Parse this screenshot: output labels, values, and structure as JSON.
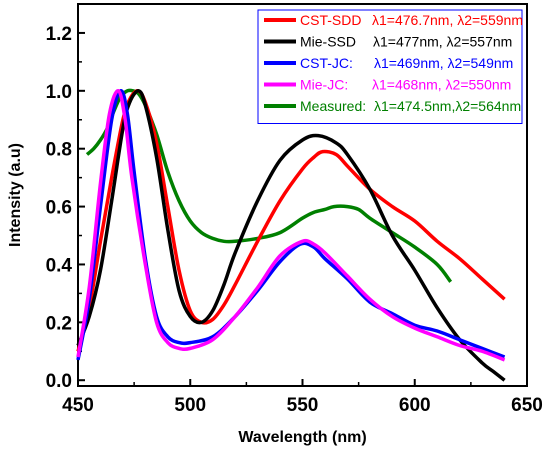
{
  "chart_data": {
    "type": "line",
    "xlabel": "Wavelength (nm)",
    "ylabel": "Intensity (a.u)",
    "xlim": [
      450,
      650
    ],
    "ylim": [
      -0.02,
      1.3
    ],
    "xticks": [
      450,
      500,
      550,
      600,
      650
    ],
    "yticks": [
      0.0,
      0.2,
      0.4,
      0.6,
      0.8,
      1.0,
      1.2
    ],
    "xtick_labels": [
      "450",
      "500",
      "550",
      "600",
      "650"
    ],
    "ytick_labels": [
      "0.0",
      "0.2",
      "0.4",
      "0.6",
      "0.8",
      "1.0",
      "1.2"
    ],
    "legend_position": "top-right",
    "grid": false,
    "series": [
      {
        "name": "CST-SDD",
        "legend_values": "λ1=476.7nm, λ2=559nm",
        "color": "#ff0000",
        "x": [
          450,
          455,
          460,
          465,
          470,
          473,
          476.7,
          480,
          485,
          490,
          495,
          500,
          505,
          510,
          515,
          520,
          530,
          540,
          550,
          555,
          559,
          565,
          570,
          580,
          590,
          600,
          610,
          620,
          630,
          640
        ],
        "y": [
          0.1,
          0.25,
          0.48,
          0.7,
          0.9,
          0.97,
          1.0,
          0.96,
          0.82,
          0.6,
          0.38,
          0.24,
          0.2,
          0.21,
          0.26,
          0.33,
          0.48,
          0.62,
          0.73,
          0.77,
          0.79,
          0.78,
          0.74,
          0.66,
          0.6,
          0.55,
          0.48,
          0.42,
          0.35,
          0.28
        ]
      },
      {
        "name": "Mie-SSD",
        "legend_values": "λ1=477nm, λ2=557nm",
        "color": "#000000",
        "x": [
          450,
          455,
          460,
          465,
          470,
          473,
          477,
          480,
          485,
          490,
          495,
          500,
          505,
          510,
          515,
          520,
          530,
          540,
          550,
          557,
          565,
          570,
          580,
          590,
          600,
          610,
          620,
          630,
          635,
          640
        ],
        "y": [
          0.12,
          0.22,
          0.38,
          0.62,
          0.87,
          0.96,
          1.0,
          0.95,
          0.77,
          0.52,
          0.31,
          0.22,
          0.2,
          0.24,
          0.33,
          0.44,
          0.62,
          0.76,
          0.83,
          0.845,
          0.82,
          0.78,
          0.66,
          0.5,
          0.38,
          0.25,
          0.14,
          0.06,
          0.03,
          0.0
        ]
      },
      {
        "name": "CST-JC:",
        "legend_values": "λ1=469nm, λ2=549nm",
        "color": "#0000ff",
        "x": [
          450,
          455,
          460,
          465,
          469,
          472,
          475,
          480,
          485,
          490,
          495,
          500,
          510,
          520,
          530,
          540,
          549,
          555,
          560,
          570,
          580,
          590,
          600,
          610,
          620,
          630,
          640
        ],
        "y": [
          0.07,
          0.28,
          0.6,
          0.9,
          1.0,
          0.92,
          0.72,
          0.42,
          0.22,
          0.15,
          0.13,
          0.13,
          0.15,
          0.22,
          0.31,
          0.41,
          0.47,
          0.46,
          0.42,
          0.35,
          0.27,
          0.23,
          0.19,
          0.17,
          0.14,
          0.11,
          0.08
        ]
      },
      {
        "name": "Mie-JC:",
        "legend_values": "λ1=468nm, λ2=550nm",
        "color": "#ff00ff",
        "x": [
          450,
          455,
          460,
          464,
          468,
          471,
          474,
          480,
          485,
          490,
          495,
          500,
          510,
          520,
          530,
          540,
          550,
          555,
          560,
          570,
          580,
          590,
          600,
          610,
          620,
          630,
          640
        ],
        "y": [
          0.08,
          0.32,
          0.68,
          0.92,
          1.0,
          0.9,
          0.7,
          0.4,
          0.2,
          0.13,
          0.11,
          0.11,
          0.14,
          0.22,
          0.32,
          0.43,
          0.48,
          0.47,
          0.44,
          0.36,
          0.28,
          0.22,
          0.18,
          0.15,
          0.12,
          0.1,
          0.07
        ]
      },
      {
        "name": "Measured:",
        "legend_values": "λ1=474.5nm,λ2=564nm",
        "color": "#008000",
        "x": [
          454,
          457,
          460,
          463,
          466,
          469,
          472,
          474.5,
          477,
          480,
          485,
          490,
          495,
          500,
          505,
          510,
          515,
          520,
          530,
          540,
          550,
          555,
          560,
          564,
          570,
          575,
          580,
          590,
          600,
          610,
          616
        ],
        "y": [
          0.78,
          0.8,
          0.83,
          0.87,
          0.93,
          0.98,
          1.0,
          1.0,
          0.99,
          0.95,
          0.85,
          0.72,
          0.62,
          0.55,
          0.51,
          0.49,
          0.48,
          0.48,
          0.49,
          0.51,
          0.56,
          0.58,
          0.59,
          0.6,
          0.6,
          0.59,
          0.56,
          0.51,
          0.46,
          0.4,
          0.34
        ]
      }
    ]
  }
}
